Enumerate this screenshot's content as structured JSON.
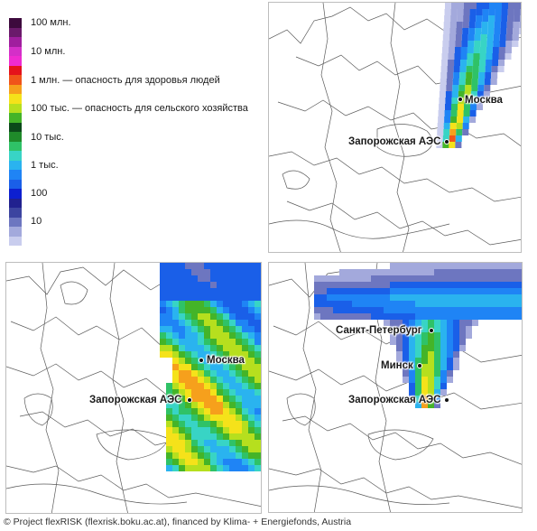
{
  "legend": {
    "levels": [
      {
        "label": "100 млн."
      },
      {
        "label": "10 млн."
      },
      {
        "label": "1 млн.  — опасность для здоровья людей"
      },
      {
        "label": "100 тыс. — опасность для сельского хозяйства"
      },
      {
        "label": "10 тыс."
      },
      {
        "label": "1 тыс."
      },
      {
        "label": "100"
      },
      {
        "label": "10"
      }
    ],
    "colors": [
      "#3d0a3d",
      "#6b1a6b",
      "#a01e9e",
      "#d42fc8",
      "#ef2bd0",
      "#e5121b",
      "#f0541a",
      "#f6a01c",
      "#f5e21a",
      "#b6df1e",
      "#44b428",
      "#0b4a1a",
      "#1f8a2a",
      "#2fc267",
      "#38d4c5",
      "#2ab3ef",
      "#1f84f5",
      "#1a5fe8",
      "#0d1fd0",
      "#21218f",
      "#3c44a0",
      "#6d76c0",
      "#a3a9dc",
      "#c9cdee"
    ]
  },
  "maps": [
    {
      "name": "top-right",
      "cities": [
        {
          "label": "Москва"
        },
        {
          "label": "Запорожская АЭС"
        }
      ]
    },
    {
      "name": "bottom-left",
      "cities": [
        {
          "label": "Москва"
        },
        {
          "label": "Запорожская АЭС"
        }
      ]
    },
    {
      "name": "bottom-right",
      "cities": [
        {
          "label": "Санкт-Петербург"
        },
        {
          "label": "Минск"
        },
        {
          "label": "Запорожская АЭС"
        }
      ]
    }
  ],
  "credit": "© Project flexRISK (flexrisk.boku.ac.at), financed by Klima- + Energiefonds, Austria"
}
